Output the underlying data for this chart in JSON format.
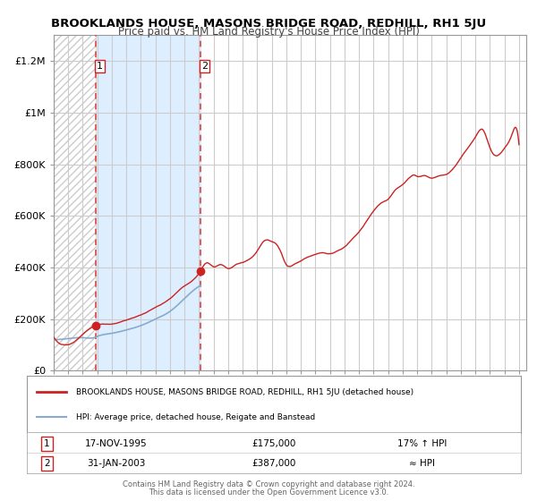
{
  "title": "BROOKLANDS HOUSE, MASONS BRIDGE ROAD, REDHILL, RH1 5JU",
  "subtitle": "Price paid vs. HM Land Registry's House Price Index (HPI)",
  "xlim": [
    1993.0,
    2025.5
  ],
  "ylim": [
    0,
    1300000
  ],
  "yticks": [
    0,
    200000,
    400000,
    600000,
    800000,
    1000000,
    1200000
  ],
  "ytick_labels": [
    "£0",
    "£200K",
    "£400K",
    "£600K",
    "£800K",
    "£1M",
    "£1.2M"
  ],
  "xticks": [
    1993,
    1994,
    1995,
    1996,
    1997,
    1998,
    1999,
    2000,
    2001,
    2002,
    2003,
    2004,
    2005,
    2006,
    2007,
    2008,
    2009,
    2010,
    2011,
    2012,
    2013,
    2014,
    2015,
    2016,
    2017,
    2018,
    2019,
    2020,
    2021,
    2022,
    2023,
    2024,
    2025
  ],
  "sale1_x": 1995.876,
  "sale1_y": 175000,
  "sale1_label": "1",
  "sale1_date": "17-NOV-1995",
  "sale1_price": "£175,000",
  "sale1_hpi": "17% ↑ HPI",
  "sale2_x": 2003.083,
  "sale2_y": 387000,
  "sale2_label": "2",
  "sale2_date": "31-JAN-2003",
  "sale2_price": "£387,000",
  "sale2_hpi": "≈ HPI",
  "vline_color": "#dd4444",
  "shade_color": "#ddeeff",
  "line_color_red": "#cc2222",
  "line_color_blue": "#88aacc",
  "marker_color": "#cc2222",
  "grid_color": "#cccccc",
  "bg_color": "#ffffff",
  "hatch_color": "#cccccc",
  "legend_line1": "BROOKLANDS HOUSE, MASONS BRIDGE ROAD, REDHILL, RH1 5JU (detached house)",
  "legend_line2": "HPI: Average price, detached house, Reigate and Banstead",
  "footer1": "Contains HM Land Registry data © Crown copyright and database right 2024.",
  "footer2": "This data is licensed under the Open Government Licence v3.0."
}
